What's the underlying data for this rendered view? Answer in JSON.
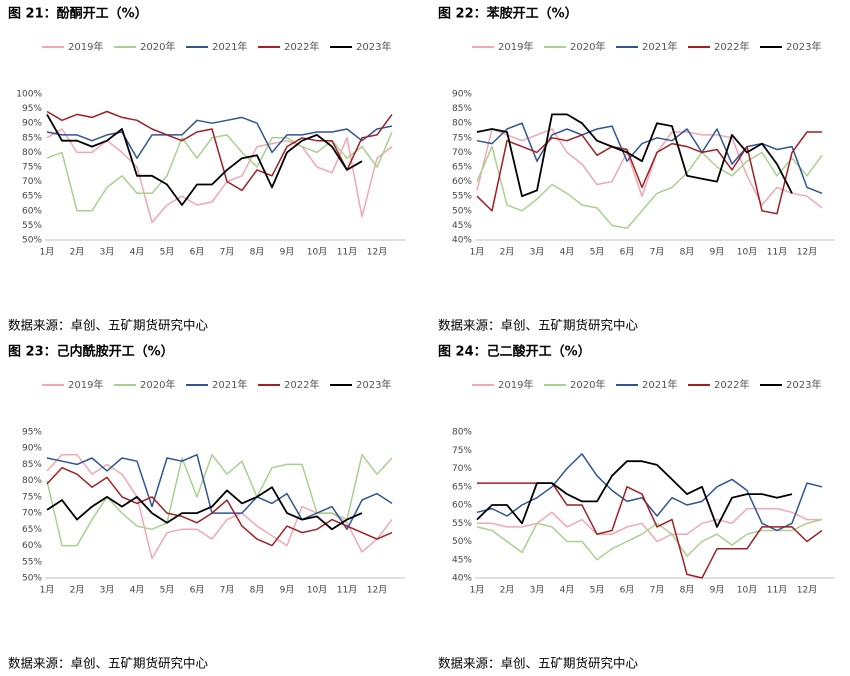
{
  "chart_data": [
    {
      "type": "line",
      "title": "图 21：酚酮开工（%）",
      "source": "数据来源：卓创、五矿期货研究中心",
      "categories": [
        "1月",
        null,
        "2月",
        null,
        "3月",
        null,
        "4月",
        null,
        "5月",
        null,
        "6月",
        null,
        "7月",
        null,
        "8月",
        null,
        "9月",
        null,
        "10月",
        null,
        "11月",
        null,
        "12月",
        null
      ],
      "ylim": [
        50,
        100
      ],
      "yticks": [
        {
          "value": 50,
          "label": "50%"
        },
        {
          "value": 55,
          "label": "55%"
        },
        {
          "value": 60,
          "label": "60%"
        },
        {
          "value": 65,
          "label": "65%"
        },
        {
          "value": 70,
          "label": "70%"
        },
        {
          "value": 75,
          "label": "75%"
        },
        {
          "value": 80,
          "label": "80%"
        },
        {
          "value": 85,
          "label": "85%"
        },
        {
          "value": 90,
          "label": "90%"
        },
        {
          "value": 95,
          "label": "95%"
        },
        {
          "value": 100,
          "label": "100%"
        }
      ],
      "series": [
        {
          "name": "2019年",
          "color": "#f2a7b2",
          "values": [
            85,
            88,
            80,
            80,
            84,
            80,
            75,
            56,
            62,
            65,
            62,
            63,
            70,
            72,
            82,
            83,
            84,
            82,
            75,
            73,
            85,
            58,
            78,
            82
          ]
        },
        {
          "name": "2020年",
          "color": "#a9d18e",
          "values": [
            78,
            80,
            60,
            60,
            68,
            72,
            66,
            66,
            72,
            85,
            78,
            85,
            86,
            80,
            75,
            85,
            85,
            82,
            80,
            84,
            78,
            82,
            75,
            87
          ]
        },
        {
          "name": "2021年",
          "color": "#2f5597",
          "values": [
            87,
            86,
            86,
            84,
            86,
            87,
            78,
            86,
            86,
            86,
            91,
            90,
            91,
            92,
            90,
            80,
            86,
            86,
            87,
            87,
            88,
            84,
            88,
            89
          ]
        },
        {
          "name": "2022年",
          "color": "#a31f24",
          "values": [
            94,
            91,
            93,
            92,
            94,
            92,
            91,
            88,
            86,
            84,
            87,
            88,
            70,
            67,
            74,
            72,
            82,
            85,
            84,
            84,
            74,
            85,
            86,
            93
          ]
        },
        {
          "name": "2023年",
          "color": "#000000",
          "values": [
            93,
            84,
            84,
            82,
            84,
            88,
            72,
            72,
            69,
            62,
            69,
            69,
            74,
            78,
            79,
            68,
            80,
            84,
            86,
            82,
            74,
            77,
            null,
            null
          ]
        }
      ]
    },
    {
      "type": "line",
      "title": "图 22：苯胺开工（%）",
      "source": "数据来源：卓创、五矿期货研究中心",
      "categories": [
        "1月",
        null,
        "2月",
        null,
        "3月",
        null,
        "4月",
        null,
        "5月",
        null,
        "6月",
        null,
        "7月",
        null,
        "8月",
        null,
        "9月",
        null,
        "10月",
        null,
        "11月",
        null,
        "12月",
        null
      ],
      "ylim": [
        40,
        90
      ],
      "yticks": [
        {
          "value": 40,
          "label": "40%"
        },
        {
          "value": 45,
          "label": "45%"
        },
        {
          "value": 50,
          "label": "50%"
        },
        {
          "value": 55,
          "label": "55%"
        },
        {
          "value": 60,
          "label": "60%"
        },
        {
          "value": 65,
          "label": "65%"
        },
        {
          "value": 70,
          "label": "70%"
        },
        {
          "value": 75,
          "label": "75%"
        },
        {
          "value": 80,
          "label": "80%"
        },
        {
          "value": 85,
          "label": "85%"
        },
        {
          "value": 90,
          "label": "90%"
        }
      ],
      "series": [
        {
          "name": "2019年",
          "color": "#f2a7b2",
          "values": [
            57,
            78,
            76,
            74,
            76,
            78,
            70,
            66,
            59,
            60,
            70,
            55,
            70,
            77,
            77,
            76,
            76,
            75,
            62,
            52,
            58,
            56,
            55,
            51
          ]
        },
        {
          "name": "2020年",
          "color": "#a9d18e",
          "values": [
            60,
            72,
            52,
            50,
            54,
            59,
            56,
            52,
            51,
            45,
            44,
            50,
            56,
            58,
            63,
            70,
            65,
            62,
            67,
            70,
            62,
            68,
            62,
            69
          ]
        },
        {
          "name": "2021年",
          "color": "#2f5597",
          "values": [
            74,
            73,
            78,
            80,
            67,
            76,
            78,
            76,
            78,
            79,
            67,
            73,
            75,
            74,
            78,
            70,
            78,
            66,
            72,
            73,
            71,
            72,
            58,
            56
          ]
        },
        {
          "name": "2022年",
          "color": "#a31f24",
          "values": [
            55,
            50,
            74,
            72,
            70,
            75,
            74,
            76,
            69,
            72,
            71,
            58,
            70,
            73,
            72,
            70,
            71,
            64,
            72,
            50,
            49,
            70,
            77,
            77
          ]
        },
        {
          "name": "2023年",
          "color": "#000000",
          "values": [
            77,
            78,
            77,
            55,
            57,
            83,
            83,
            80,
            74,
            72,
            70,
            67,
            80,
            79,
            62,
            61,
            60,
            76,
            70,
            73,
            66,
            56,
            null,
            null
          ]
        }
      ]
    },
    {
      "type": "line",
      "title": "图 23：己内酰胺开工（%）",
      "source": "数据来源：卓创、五矿期货研究中心",
      "categories": [
        "1月",
        null,
        "2月",
        null,
        "3月",
        null,
        "4月",
        null,
        "5月",
        null,
        "6月",
        null,
        "7月",
        null,
        "8月",
        null,
        "9月",
        null,
        "10月",
        null,
        "11月",
        null,
        "12月",
        null
      ],
      "ylim": [
        50,
        95
      ],
      "yticks": [
        {
          "value": 50,
          "label": "50%"
        },
        {
          "value": 55,
          "label": "55%"
        },
        {
          "value": 60,
          "label": "60%"
        },
        {
          "value": 65,
          "label": "65%"
        },
        {
          "value": 70,
          "label": "70%"
        },
        {
          "value": 75,
          "label": "75%"
        },
        {
          "value": 80,
          "label": "80%"
        },
        {
          "value": 85,
          "label": "85%"
        },
        {
          "value": 90,
          "label": "90%"
        },
        {
          "value": 95,
          "label": "95%"
        }
      ],
      "series": [
        {
          "name": "2019年",
          "color": "#f2a7b2",
          "values": [
            83,
            88,
            88,
            82,
            85,
            82,
            75,
            56,
            64,
            65,
            65,
            62,
            68,
            70,
            66,
            63,
            60,
            72,
            70,
            70,
            67,
            58,
            62,
            68
          ]
        },
        {
          "name": "2020年",
          "color": "#a9d18e",
          "values": [
            80,
            60,
            60,
            68,
            75,
            70,
            66,
            65,
            67,
            87,
            75,
            88,
            82,
            86,
            75,
            84,
            85,
            85,
            70,
            70,
            68,
            88,
            82,
            87
          ]
        },
        {
          "name": "2021年",
          "color": "#2f5597",
          "values": [
            87,
            86,
            85,
            87,
            83,
            87,
            86,
            72,
            87,
            86,
            88,
            70,
            70,
            70,
            75,
            73,
            76,
            68,
            70,
            72,
            65,
            74,
            76,
            73
          ]
        },
        {
          "name": "2022年",
          "color": "#a31f24",
          "values": [
            79,
            84,
            82,
            78,
            81,
            75,
            73,
            75,
            70,
            69,
            67,
            70,
            74,
            66,
            62,
            60,
            66,
            64,
            65,
            68,
            66,
            64,
            62,
            64
          ]
        },
        {
          "name": "2023年",
          "color": "#000000",
          "values": [
            71,
            74,
            68,
            72,
            75,
            72,
            75,
            70,
            67,
            70,
            70,
            72,
            77,
            73,
            75,
            78,
            70,
            68,
            69,
            65,
            68,
            70,
            null,
            null
          ]
        }
      ]
    },
    {
      "type": "line",
      "title": "图 24：己二酸开工（%）",
      "source": "数据来源：卓创、五矿期货研究中心",
      "categories": [
        "1月",
        null,
        "2月",
        null,
        "3月",
        null,
        "4月",
        null,
        "5月",
        null,
        "6月",
        null,
        "7月",
        null,
        "8月",
        null,
        "9月",
        null,
        "10月",
        null,
        "11月",
        null,
        "12月",
        null
      ],
      "ylim": [
        40,
        80
      ],
      "yticks": [
        {
          "value": 40,
          "label": "40%"
        },
        {
          "value": 45,
          "label": "45%"
        },
        {
          "value": 50,
          "label": "50%"
        },
        {
          "value": 55,
          "label": "55%"
        },
        {
          "value": 60,
          "label": "60%"
        },
        {
          "value": 65,
          "label": "65%"
        },
        {
          "value": 70,
          "label": "70%"
        },
        {
          "value": 75,
          "label": "75%"
        },
        {
          "value": 80,
          "label": "80%"
        }
      ],
      "series": [
        {
          "name": "2019年",
          "color": "#f2a7b2",
          "values": [
            55,
            55,
            54,
            54,
            55,
            58,
            54,
            56,
            52,
            52,
            54,
            55,
            50,
            52,
            52,
            55,
            56,
            55,
            59,
            59,
            59,
            58,
            56,
            56
          ]
        },
        {
          "name": "2020年",
          "color": "#a9d18e",
          "values": [
            54,
            53,
            50,
            47,
            55,
            54,
            50,
            50,
            45,
            48,
            50,
            52,
            55,
            52,
            46,
            50,
            52,
            49,
            52,
            53,
            53,
            53,
            55,
            56
          ]
        },
        {
          "name": "2021年",
          "color": "#2f5597",
          "values": [
            58,
            59,
            57,
            60,
            62,
            65,
            70,
            74,
            68,
            64,
            61,
            62,
            57,
            62,
            60,
            61,
            65,
            67,
            64,
            55,
            53,
            55,
            66,
            65
          ]
        },
        {
          "name": "2022年",
          "color": "#a31f24",
          "values": [
            66,
            66,
            66,
            66,
            66,
            66,
            60,
            60,
            52,
            53,
            65,
            63,
            54,
            56,
            41,
            40,
            48,
            48,
            48,
            54,
            54,
            54,
            50,
            53
          ]
        },
        {
          "name": "2023年",
          "color": "#000000",
          "values": [
            56,
            60,
            60,
            55,
            66,
            66,
            63,
            61,
            61,
            68,
            72,
            72,
            71,
            67,
            63,
            65,
            54,
            62,
            63,
            63,
            62,
            63,
            null,
            null
          ]
        }
      ]
    }
  ]
}
